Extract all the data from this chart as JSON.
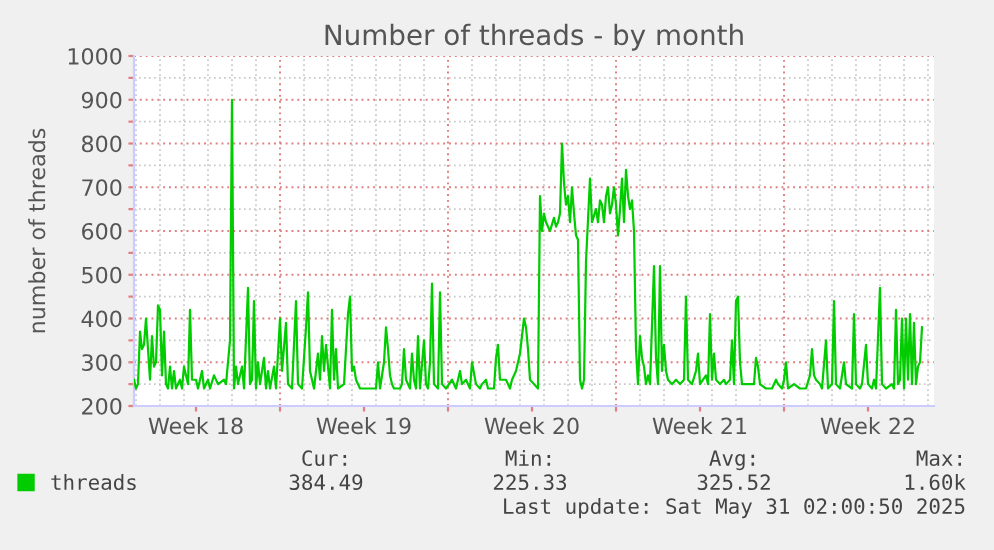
{
  "chart_data": {
    "type": "line",
    "title": "Number of threads - by month",
    "ylabel": "number of threads",
    "xlim": [
      "2025-04-28T22:00",
      "2025-06-01T06:00"
    ],
    "ylim": [
      200,
      1000
    ],
    "xticks": [
      {
        "value": "2025-05-01T12:00",
        "label": "Week 18"
      },
      {
        "value": "2025-05-05T00:00",
        "label": null
      },
      {
        "value": "2025-05-08T12:00",
        "label": "Week 19"
      },
      {
        "value": "2025-05-12T00:00",
        "label": null
      },
      {
        "value": "2025-05-15T12:00",
        "label": "Week 20"
      },
      {
        "value": "2025-05-19T00:00",
        "label": null
      },
      {
        "value": "2025-05-22T12:00",
        "label": "Week 21"
      },
      {
        "value": "2025-05-26T00:00",
        "label": null
      },
      {
        "value": "2025-05-29T12:00",
        "label": "Week 22"
      }
    ],
    "yticks": [
      200,
      {
        "value": 250,
        "label": null
      },
      300,
      {
        "value": 350,
        "label": null
      },
      400,
      {
        "value": 450,
        "label": null
      },
      500,
      {
        "value": 550,
        "label": null
      },
      600,
      {
        "value": 650,
        "label": null
      },
      700,
      {
        "value": 750,
        "label": null
      },
      800,
      {
        "value": 850,
        "label": null
      },
      900,
      {
        "value": 950,
        "label": null
      },
      1000
    ],
    "grid": true,
    "legend": "bottom",
    "marker": "none",
    "line_style": "solid",
    "series": [
      {
        "name": "threads",
        "color": "#00cc00",
        "x": [
          "2025-04-28T22:00",
          "2025-04-29T00:00",
          "2025-04-29T02:00",
          "2025-04-29T04:00",
          "2025-04-29T06:00",
          "2025-04-29T08:00",
          "2025-04-29T10:00",
          "2025-04-29T12:00",
          "2025-04-29T14:00",
          "2025-04-29T16:00",
          "2025-04-29T18:00",
          "2025-04-29T20:00",
          "2025-04-29T22:00",
          "2025-04-30T00:00",
          "2025-04-30T02:00",
          "2025-04-30T04:00",
          "2025-04-30T06:00",
          "2025-04-30T08:00",
          "2025-04-30T10:00",
          "2025-04-30T12:00",
          "2025-04-30T14:00",
          "2025-04-30T16:00",
          "2025-04-30T20:00",
          "2025-04-30T22:00",
          "2025-05-01T00:00",
          "2025-05-01T04:00",
          "2025-05-01T06:00",
          "2025-05-01T08:00",
          "2025-05-01T12:00",
          "2025-05-01T14:00",
          "2025-05-01T18:00",
          "2025-05-01T20:00",
          "2025-05-02T00:00",
          "2025-05-02T02:00",
          "2025-05-02T06:00",
          "2025-05-02T10:00",
          "2025-05-02T16:00",
          "2025-05-02T18:00",
          "2025-05-02T22:00",
          "2025-05-03T00:00",
          "2025-05-03T02:00",
          "2025-05-03T04:00",
          "2025-05-03T06:00",
          "2025-05-03T10:00",
          "2025-05-03T12:00",
          "2025-05-03T16:00",
          "2025-05-03T18:00",
          "2025-05-03T20:00",
          "2025-05-03T22:00",
          "2025-05-04T00:00",
          "2025-05-04T02:00",
          "2025-05-04T04:00",
          "2025-05-04T08:00",
          "2025-05-04T10:00",
          "2025-05-04T12:00",
          "2025-05-04T14:00",
          "2025-05-04T18:00",
          "2025-05-04T20:00",
          "2025-05-05T00:00",
          "2025-05-05T02:00",
          "2025-05-05T06:00",
          "2025-05-05T08:00",
          "2025-05-05T12:00",
          "2025-05-05T16:00",
          "2025-05-05T18:00",
          "2025-05-05T22:00",
          "2025-05-06T02:00",
          "2025-05-06T04:00",
          "2025-05-06T06:00",
          "2025-05-06T10:00",
          "2025-05-06T14:00",
          "2025-05-06T16:00",
          "2025-05-06T18:00",
          "2025-05-06T20:00",
          "2025-05-06T22:00",
          "2025-05-07T02:00",
          "2025-05-07T04:00",
          "2025-05-07T06:00",
          "2025-05-07T08:00",
          "2025-05-07T10:00",
          "2025-05-07T16:00",
          "2025-05-07T20:00",
          "2025-05-07T22:00",
          "2025-05-08T00:00",
          "2025-05-08T02:00",
          "2025-05-08T04:00",
          "2025-05-08T08:00",
          "2025-05-08T14:00",
          "2025-05-08T18:00",
          "2025-05-09T00:00",
          "2025-05-09T02:00",
          "2025-05-09T04:00",
          "2025-05-09T08:00",
          "2025-05-09T10:00",
          "2025-05-09T12:00",
          "2025-05-09T14:00",
          "2025-05-09T16:00",
          "2025-05-09T18:00",
          "2025-05-10T00:00",
          "2025-05-10T02:00",
          "2025-05-10T04:00",
          "2025-05-10T06:00",
          "2025-05-10T10:00",
          "2025-05-10T12:00",
          "2025-05-10T14:00",
          "2025-05-10T16:00",
          "2025-05-10T18:00",
          "2025-05-10T20:00",
          "2025-05-11T00:00",
          "2025-05-11T02:00",
          "2025-05-11T04:00",
          "2025-05-11T06:00",
          "2025-05-11T08:00",
          "2025-05-11T10:00",
          "2025-05-11T14:00",
          "2025-05-11T16:00",
          "2025-05-11T18:00",
          "2025-05-11T22:00",
          "2025-05-12T04:00",
          "2025-05-12T08:00",
          "2025-05-12T12:00",
          "2025-05-12T14:00",
          "2025-05-12T18:00",
          "2025-05-12T22:00",
          "2025-05-13T00:00",
          "2025-05-13T04:00",
          "2025-05-13T08:00",
          "2025-05-13T10:00",
          "2025-05-13T14:00",
          "2025-05-13T16:00",
          "2025-05-13T22:00",
          "2025-05-14T00:00",
          "2025-05-14T02:00",
          "2025-05-14T04:00",
          "2025-05-14T10:00",
          "2025-05-14T12:00",
          "2025-05-14T14:00",
          "2025-05-14T16:00",
          "2025-05-14T20:00",
          "2025-05-15T00:00",
          "2025-05-15T04:00",
          "2025-05-15T06:00",
          "2025-05-15T08:00",
          "2025-05-15T10:00",
          "2025-05-15T14:00",
          "2025-05-15T18:00",
          "2025-05-15T20:00",
          "2025-05-15T22:00",
          "2025-05-16T00:00",
          "2025-05-16T02:00",
          "2025-05-16T06:00",
          "2025-05-16T10:00",
          "2025-05-16T12:00",
          "2025-05-16T14:00",
          "2025-05-16T16:00",
          "2025-05-16T18:00",
          "2025-05-16T20:00",
          "2025-05-16T22:00",
          "2025-05-17T00:00",
          "2025-05-17T02:00",
          "2025-05-17T04:00",
          "2025-05-17T06:00",
          "2025-05-17T08:00",
          "2025-05-17T10:00",
          "2025-05-17T12:00",
          "2025-05-17T14:00",
          "2025-05-17T16:00",
          "2025-05-17T18:00",
          "2025-05-17T22:00",
          "2025-05-18T00:00",
          "2025-05-18T04:00",
          "2025-05-18T06:00",
          "2025-05-18T08:00",
          "2025-05-18T10:00",
          "2025-05-18T12:00",
          "2025-05-18T14:00",
          "2025-05-18T16:00",
          "2025-05-18T18:00",
          "2025-05-18T20:00",
          "2025-05-18T22:00",
          "2025-05-19T00:00",
          "2025-05-19T02:00",
          "2025-05-19T04:00",
          "2025-05-19T06:00",
          "2025-05-19T08:00",
          "2025-05-19T10:00",
          "2025-05-19T12:00",
          "2025-05-19T14:00",
          "2025-05-19T16:00",
          "2025-05-19T18:00",
          "2025-05-19T20:00",
          "2025-05-19T22:00",
          "2025-05-20T00:00",
          "2025-05-20T02:00",
          "2025-05-20T04:00",
          "2025-05-20T06:00",
          "2025-05-20T08:00",
          "2025-05-20T10:00",
          "2025-05-20T14:00",
          "2025-05-20T16:00",
          "2025-05-20T18:00",
          "2025-05-20T20:00",
          "2025-05-20T22:00",
          "2025-05-21T00:00",
          "2025-05-21T02:00",
          "2025-05-21T04:00",
          "2025-05-21T08:00",
          "2025-05-21T12:00",
          "2025-05-21T16:00",
          "2025-05-21T20:00",
          "2025-05-21T22:00",
          "2025-05-22T00:00",
          "2025-05-22T04:00",
          "2025-05-22T08:00",
          "2025-05-22T10:00",
          "2025-05-22T12:00",
          "2025-05-22T18:00",
          "2025-05-22T20:00",
          "2025-05-22T22:00",
          "2025-05-23T00:00",
          "2025-05-23T02:00",
          "2025-05-23T04:00",
          "2025-05-23T08:00",
          "2025-05-23T12:00",
          "2025-05-23T14:00",
          "2025-05-23T18:00",
          "2025-05-23T20:00",
          "2025-05-23T22:00",
          "2025-05-24T00:00",
          "2025-05-24T02:00",
          "2025-05-24T04:00",
          "2025-05-24T06:00",
          "2025-05-24T12:00",
          "2025-05-24T18:00",
          "2025-05-24T20:00",
          "2025-05-24T22:00",
          "2025-05-25T00:00",
          "2025-05-25T06:00",
          "2025-05-25T12:00",
          "2025-05-25T16:00",
          "2025-05-25T18:00",
          "2025-05-25T22:00",
          "2025-05-26T00:00",
          "2025-05-26T02:00",
          "2025-05-26T04:00",
          "2025-05-26T10:00",
          "2025-05-26T16:00",
          "2025-05-26T22:00",
          "2025-05-27T02:00",
          "2025-05-27T04:00",
          "2025-05-27T06:00",
          "2025-05-27T08:00",
          "2025-05-27T12:00",
          "2025-05-27T14:00",
          "2025-05-27T18:00",
          "2025-05-27T20:00",
          "2025-05-28T00:00",
          "2025-05-28T02:00",
          "2025-05-28T04:00",
          "2025-05-28T08:00",
          "2025-05-28T12:00",
          "2025-05-28T14:00",
          "2025-05-28T20:00",
          "2025-05-28T22:00",
          "2025-05-29T00:00",
          "2025-05-29T04:00",
          "2025-05-29T06:00",
          "2025-05-29T10:00",
          "2025-05-29T12:00",
          "2025-05-29T16:00",
          "2025-05-29T18:00",
          "2025-05-29T20:00",
          "2025-05-30T00:00",
          "2025-05-30T02:00",
          "2025-05-30T06:00",
          "2025-05-30T12:00",
          "2025-05-30T14:00",
          "2025-05-30T16:00",
          "2025-05-30T18:00",
          "2025-05-30T20:00",
          "2025-05-30T22:00",
          "2025-05-31T00:00",
          "2025-05-31T02:00",
          "2025-05-31T04:00",
          "2025-05-31T06:00",
          "2025-05-31T08:00",
          "2025-05-31T10:00",
          "2025-05-31T12:00",
          "2025-05-31T14:00",
          "2025-05-31T16:00",
          "2025-05-31T18:00"
        ],
        "values": [
          260,
          240,
          250,
          370,
          330,
          340,
          400,
          330,
          260,
          360,
          290,
          300,
          430,
          420,
          270,
          370,
          250,
          240,
          290,
          240,
          280,
          240,
          260,
          240,
          290,
          250,
          420,
          260,
          260,
          240,
          280,
          240,
          260,
          240,
          270,
          250,
          260,
          250,
          350,
          900,
          240,
          290,
          250,
          290,
          240,
          470,
          250,
          260,
          440,
          240,
          300,
          250,
          310,
          240,
          280,
          240,
          290,
          240,
          400,
          280,
          390,
          250,
          240,
          440,
          250,
          240,
          380,
          460,
          280,
          240,
          320,
          260,
          360,
          280,
          340,
          240,
          420,
          260,
          330,
          240,
          250,
          410,
          450,
          280,
          290,
          260,
          240,
          240,
          240,
          240,
          300,
          240,
          300,
          380,
          330,
          270,
          250,
          240,
          240,
          250,
          330,
          260,
          240,
          320,
          260,
          240,
          360,
          240,
          350,
          250,
          240,
          300,
          480,
          250,
          240,
          460,
          250,
          240,
          260,
          240,
          280,
          250,
          260,
          240,
          300,
          250,
          240,
          250,
          260,
          240,
          240,
          310,
          340,
          260,
          260,
          250,
          240,
          260,
          280,
          320,
          400,
          380,
          330,
          260,
          250,
          240,
          680,
          600,
          640,
          620,
          600,
          630,
          610,
          620,
          640,
          800,
          710,
          660,
          680,
          620,
          700,
          640,
          590,
          580,
          260,
          240,
          260,
          530,
          720,
          620,
          650,
          620,
          670,
          660,
          620,
          680,
          700,
          640,
          660,
          700,
          660,
          590,
          650,
          720,
          620,
          740,
          680,
          650,
          670,
          600,
          330,
          250,
          360,
          310,
          290,
          250,
          270,
          250,
          520,
          310,
          250,
          520,
          280,
          340,
          280,
          260,
          250,
          260,
          250,
          260,
          450,
          260,
          250,
          280,
          320,
          250,
          270,
          250,
          410,
          260,
          320,
          260,
          250,
          260,
          250,
          260,
          350,
          250,
          440,
          450,
          300,
          250,
          250,
          250,
          310,
          290,
          250,
          240,
          240,
          260,
          250,
          240,
          260,
          300,
          240,
          250,
          240,
          240,
          270,
          330,
          270,
          260,
          250,
          240,
          350,
          240,
          250,
          440,
          250,
          240,
          300,
          250,
          240,
          410,
          250,
          240,
          250,
          340,
          250,
          240,
          260,
          240,
          470,
          250,
          240,
          250,
          240,
          420,
          250,
          260,
          400,
          240,
          400,
          260,
          410,
          250,
          390,
          250,
          290,
          300,
          380
        ]
      }
    ],
    "annotations": [
      "Cur:",
      "Min:",
      "Avg:",
      "Max:",
      "384.49",
      "225.33",
      "325.52",
      "1.60k",
      "Last update: Sat May 31 02:00:50 2025"
    ]
  }
}
